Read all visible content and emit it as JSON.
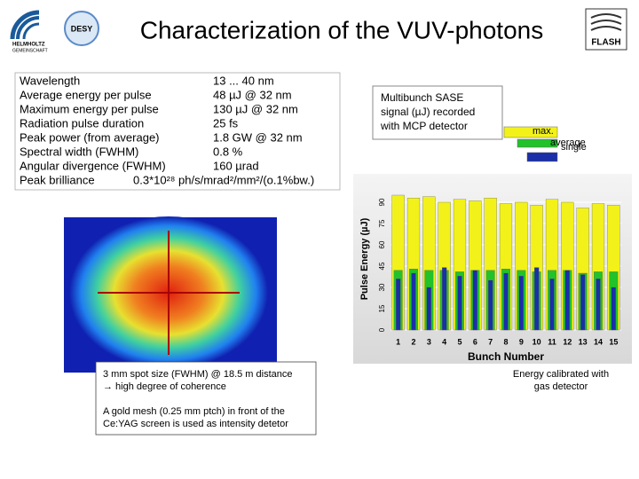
{
  "header": {
    "title": "Characterization of the VUV-photons",
    "logos": [
      "HELMHOLTZ",
      "GEMEINSCHAFT",
      "DESY",
      "FLASH"
    ]
  },
  "parameters": [
    {
      "label": "Wavelength",
      "value": "13 ... 40 nm"
    },
    {
      "label": "Average energy per pulse",
      "value": "48 µJ @ 32 nm"
    },
    {
      "label": "Maximum energy per pulse",
      "value": "130 µJ @ 32 nm"
    },
    {
      "label": "Radiation pulse duration",
      "value": "25 fs"
    },
    {
      "label": "Peak power (from average)",
      "value": "1.8 GW @ 32 nm"
    },
    {
      "label": "Spectral width (FWHM)",
      "value": "0.8 %"
    },
    {
      "label": "Angular divergence (FWHM)",
      "value": "160 µrad"
    },
    {
      "label": "Peak brilliance",
      "value": "0.3*10²⁸ ph/s/mrad²/mm²/(o.1%bw.)"
    }
  ],
  "captions": {
    "mcp": [
      "Multibunch SASE",
      "signal (µJ) recorded",
      "with MCP detector"
    ],
    "spot": [
      "3 mm spot size (FWHM) @ 18.5 m distance",
      "→ high degree of coherence"
    ],
    "mesh": [
      "A gold mesh (0.25 mm ptch) in front of the",
      "Ce:YAG screen is used as intensity detetor"
    ],
    "calibration": [
      "Energy calibrated with",
      "gas detector"
    ]
  },
  "chart_data": {
    "type": "bar",
    "ylabel": "Pulse Energy (µJ)",
    "xlabel": "Bunch Number",
    "categories": [
      1,
      2,
      3,
      4,
      5,
      6,
      7,
      8,
      9,
      10,
      11,
      12,
      13,
      14,
      15
    ],
    "series": [
      {
        "name": "max.",
        "color": "#f2f21a",
        "values": [
          95,
          93,
          94,
          90,
          92,
          91,
          93,
          89,
          90,
          88,
          92,
          90,
          86,
          89,
          88
        ]
      },
      {
        "name": "average",
        "color": "#22c22a",
        "values": [
          42,
          43,
          42,
          42,
          41,
          42,
          42,
          43,
          42,
          41,
          42,
          42,
          40,
          41,
          41
        ]
      },
      {
        "name": "single",
        "color": "#1a2fa8",
        "values": [
          36,
          40,
          30,
          44,
          38,
          42,
          35,
          40,
          38,
          44,
          36,
          42,
          39,
          36,
          30
        ]
      }
    ],
    "ylim": [
      0,
      100
    ],
    "yticks": [
      0,
      15,
      30,
      45,
      60,
      75,
      90
    ]
  }
}
